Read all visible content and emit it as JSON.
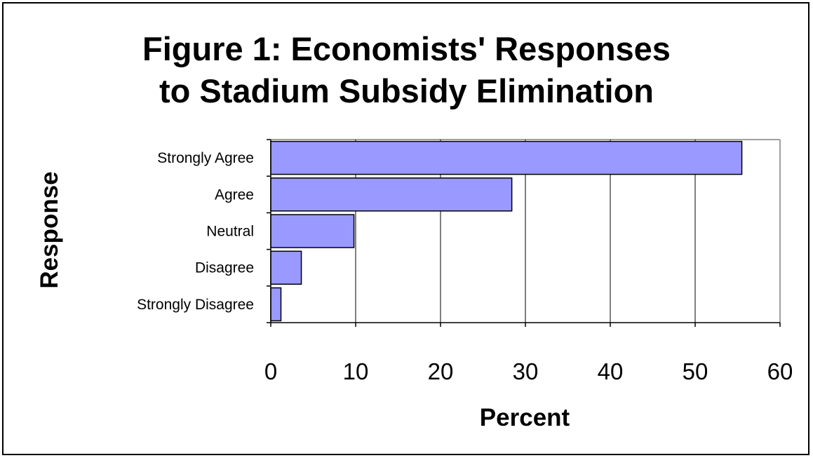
{
  "chart_data": {
    "type": "bar",
    "orientation": "horizontal",
    "title_line1": "Figure 1: Economists' Responses",
    "title_line2": "to Stadium Subsidy Elimination",
    "xlabel": "Percent",
    "ylabel": "Response",
    "categories": [
      "Strongly Agree",
      "Agree",
      "Neutral",
      "Disagree",
      "Strongly Disagree"
    ],
    "values": [
      55.5,
      28.4,
      9.8,
      3.6,
      1.2
    ],
    "xlim": [
      0,
      60
    ],
    "xticks": [
      "0",
      "10",
      "20",
      "30",
      "40",
      "50",
      "60"
    ],
    "grid": "vertical",
    "bar_color": "#9999ff",
    "legend": "none"
  }
}
